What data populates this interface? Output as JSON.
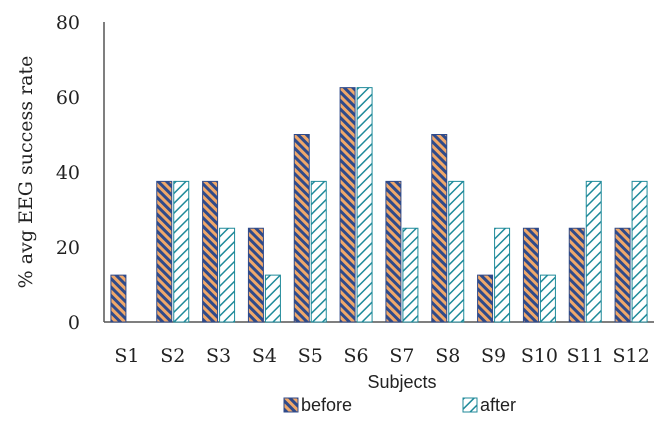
{
  "chart_data": {
    "type": "bar",
    "categories": [
      "S1",
      "S2",
      "S3",
      "S4",
      "S5",
      "S6",
      "S7",
      "S8",
      "S9",
      "S10",
      "S11",
      "S12"
    ],
    "series": [
      {
        "name": "before",
        "values": [
          12.5,
          37.5,
          37.5,
          25,
          50,
          62.5,
          37.5,
          50,
          12.5,
          25,
          25,
          25
        ]
      },
      {
        "name": "after",
        "values": [
          0,
          37.5,
          25,
          12.5,
          37.5,
          62.5,
          25,
          37.5,
          25,
          12.5,
          37.5,
          37.5
        ]
      }
    ],
    "ylabel": "% avg EEG success rate",
    "xlabel": "Subjects",
    "ylim": [
      0,
      80
    ],
    "yticks": [
      "0",
      "20",
      "40",
      "60",
      "80"
    ],
    "legend_position": "bottom-center",
    "grid": false,
    "colors": {
      "before": "#2f4a8a",
      "after": "#1f8a9a"
    }
  }
}
